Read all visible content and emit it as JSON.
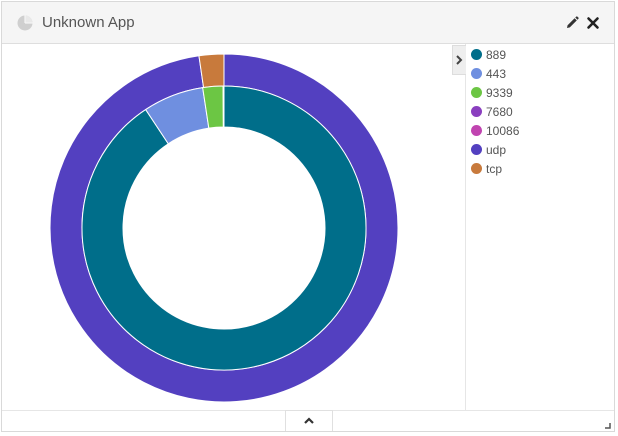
{
  "app": {
    "title": "Unknown App"
  },
  "header": {
    "icon": "pie-chart-icon",
    "actions": [
      {
        "name": "edit",
        "icon": "pencil-icon"
      },
      {
        "name": "close",
        "icon": "close-icon"
      }
    ]
  },
  "footer": {
    "collapse_icon": "chevron-up-icon",
    "resize_icon": "resize-corner-icon"
  },
  "legend": {
    "toggle_icon": "chevron-right-icon",
    "items": [
      {
        "label": "889",
        "color": "#006e8a"
      },
      {
        "label": "443",
        "color": "#6f8fe0"
      },
      {
        "label": "9339",
        "color": "#6cc644"
      },
      {
        "label": "7680",
        "color": "#8a3fbf"
      },
      {
        "label": "10086",
        "color": "#c044b0"
      },
      {
        "label": "udp",
        "color": "#5340c0"
      },
      {
        "label": "tcp",
        "color": "#c87a3c"
      }
    ]
  },
  "chart_data": {
    "type": "pie",
    "donut": true,
    "rings": [
      {
        "level": "outer",
        "slices": [
          {
            "label": "udp",
            "value": 97.7,
            "color": "#5340c0"
          },
          {
            "label": "tcp",
            "value": 2.3,
            "color": "#c87a3c"
          }
        ]
      },
      {
        "level": "inner",
        "slices": [
          {
            "label": "889",
            "value": 90.7,
            "color": "#006e8a"
          },
          {
            "label": "443",
            "value": 6.9,
            "color": "#6f8fe0"
          },
          {
            "label": "9339",
            "value": 2.3,
            "color": "#6cc644"
          },
          {
            "label": "7680",
            "value": 0.05,
            "color": "#8a3fbf"
          },
          {
            "label": "10086",
            "value": 0.05,
            "color": "#c044b0"
          }
        ]
      }
    ],
    "legend_position": "right"
  }
}
